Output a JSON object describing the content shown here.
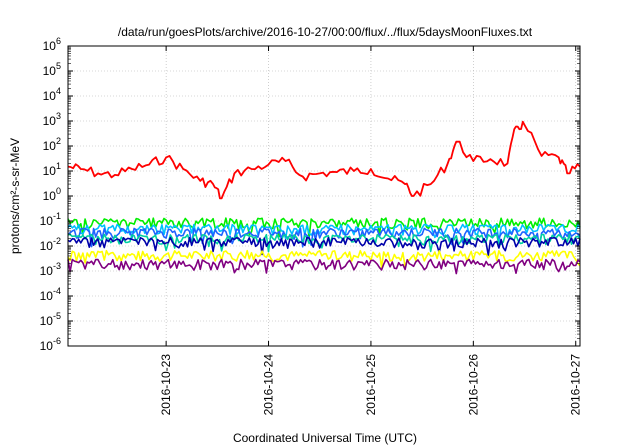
{
  "chart_data": {
    "type": "line",
    "title": "/data/run/goesPlots/archive/2016-10-27/00:00/flux/../flux/5daysMoonFluxes.txt",
    "xlabel": "Coordinated Universal Time (UTC)",
    "ylabel": "protons/cm²-s-sr-MeV",
    "yscale": "log",
    "ylim": [
      1e-06,
      1000000.0
    ],
    "xlim": [
      "2016-10-22T01:00",
      "2016-10-27T01:00"
    ],
    "grid": true,
    "legend": "none",
    "y_ticks": [
      {
        "value": 1e-06,
        "base": "10",
        "exp": "-6"
      },
      {
        "value": 1e-05,
        "base": "10",
        "exp": "-5"
      },
      {
        "value": 0.0001,
        "base": "10",
        "exp": "-4"
      },
      {
        "value": 0.001,
        "base": "10",
        "exp": "-3"
      },
      {
        "value": 0.01,
        "base": "10",
        "exp": "-2"
      },
      {
        "value": 0.1,
        "base": "10",
        "exp": "-1"
      },
      {
        "value": 1,
        "base": "10",
        "exp": "0"
      },
      {
        "value": 10,
        "base": "10",
        "exp": "1"
      },
      {
        "value": 100,
        "base": "10",
        "exp": "2"
      },
      {
        "value": 1000,
        "base": "10",
        "exp": "3"
      },
      {
        "value": 10000,
        "base": "10",
        "exp": "4"
      },
      {
        "value": 100000,
        "base": "10",
        "exp": "5"
      },
      {
        "value": 1000000,
        "base": "10",
        "exp": "6"
      }
    ],
    "x_ticks": [
      {
        "value": "2016-10-23T00:00",
        "label": "2016-10-23"
      },
      {
        "value": "2016-10-24T00:00",
        "label": "2016-10-24"
      },
      {
        "value": "2016-10-25T00:00",
        "label": "2016-10-25"
      },
      {
        "value": "2016-10-26T00:00",
        "label": "2016-10-26"
      },
      {
        "value": "2016-10-27T00:00",
        "label": "2016-10-27"
      }
    ],
    "series": [
      {
        "color": "#ff0000",
        "base": 15,
        "values": [
          [
            "2016-10-22T01:00",
            15
          ],
          [
            "2016-10-22T04:00",
            12
          ],
          [
            "2016-10-22T08:00",
            8
          ],
          [
            "2016-10-22T12:00",
            7
          ],
          [
            "2016-10-22T16:00",
            12
          ],
          [
            "2016-10-22T20:00",
            18
          ],
          [
            "2016-10-23T00:00",
            35
          ],
          [
            "2016-10-23T04:00",
            12
          ],
          [
            "2016-10-23T08:00",
            4
          ],
          [
            "2016-10-23T11:00",
            3
          ],
          [
            "2016-10-23T13:00",
            0.8
          ],
          [
            "2016-10-23T16:00",
            8
          ],
          [
            "2016-10-23T20:00",
            12
          ],
          [
            "2016-10-24T00:00",
            18
          ],
          [
            "2016-10-24T04:00",
            25
          ],
          [
            "2016-10-24T08:00",
            6
          ],
          [
            "2016-10-24T12:00",
            8
          ],
          [
            "2016-10-24T16:00",
            9
          ],
          [
            "2016-10-24T20:00",
            10
          ],
          [
            "2016-10-25T00:00",
            12
          ],
          [
            "2016-10-25T04:00",
            5
          ],
          [
            "2016-10-25T08:00",
            3
          ],
          [
            "2016-10-25T10:00",
            1
          ],
          [
            "2016-10-25T14:00",
            3
          ],
          [
            "2016-10-25T18:00",
            20
          ],
          [
            "2016-10-25T20:00",
            150
          ],
          [
            "2016-10-26T00:00",
            25
          ],
          [
            "2016-10-26T04:00",
            30
          ],
          [
            "2016-10-26T08:00",
            20
          ],
          [
            "2016-10-26T10:00",
            600
          ],
          [
            "2016-10-26T12:00",
            700
          ],
          [
            "2016-10-26T16:00",
            40
          ],
          [
            "2016-10-26T20:00",
            35
          ],
          [
            "2016-10-26T22:00",
            8
          ],
          [
            "2016-10-27T01:00",
            15
          ]
        ]
      },
      {
        "color": "#00ee00",
        "base": 0.09,
        "values": "noisy"
      },
      {
        "color": "#00bfff",
        "base": 0.05,
        "values": "noisy"
      },
      {
        "color": "#1e63ff",
        "base": 0.035,
        "values": "noisy"
      },
      {
        "color": "#00d0a0",
        "base": 0.02,
        "values": "noisy"
      },
      {
        "color": "#0000aa",
        "base": 0.015,
        "values": "noisy"
      },
      {
        "color": "#ffff00",
        "base": 0.0045,
        "values": "noisy"
      },
      {
        "color": "#800080",
        "base": 0.002,
        "values": "noisy"
      }
    ]
  }
}
